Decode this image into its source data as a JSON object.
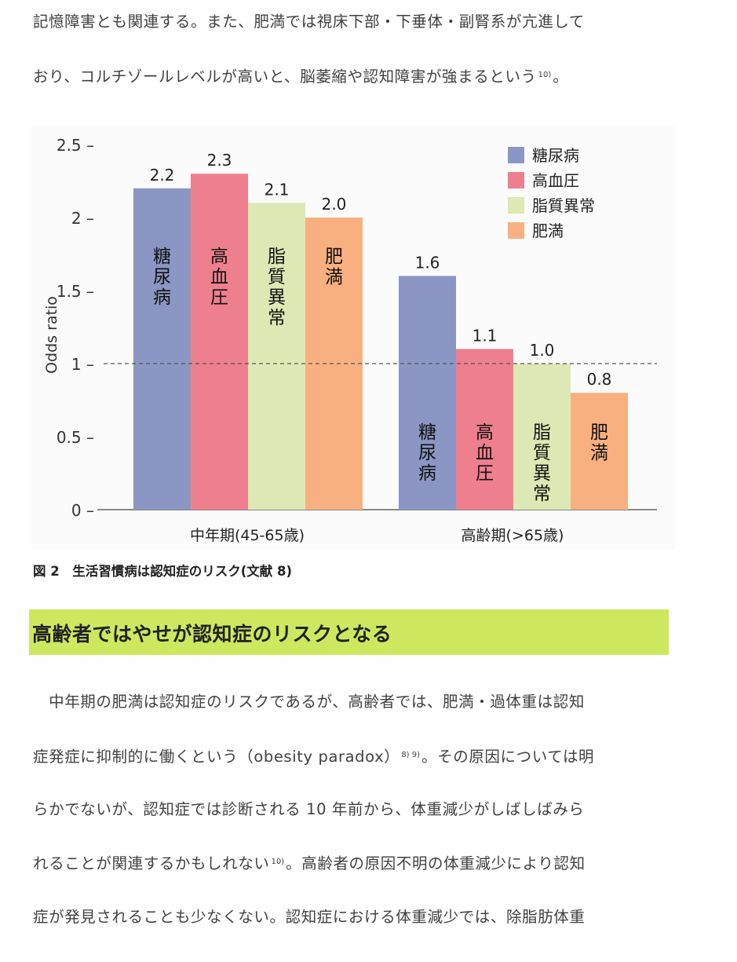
{
  "intro": {
    "line1": "記憶障害とも関連する。また、肥満では視床下部・下垂体・副腎系が亢進して",
    "line2": "おり、コルチゾールレベルが高いと、脳萎縮や認知障害が強まるという",
    "line2_ref": "10)",
    "line2_end": "。"
  },
  "chart_data": {
    "type": "bar",
    "ylabel": "Odds ratio",
    "ylim": [
      0,
      2.5
    ],
    "yticks": [
      "0",
      "0.5",
      "1",
      "1.5",
      "2",
      "2.5"
    ],
    "reference_line": 1,
    "groups": [
      "中年期(45-65歳)",
      "高齢期(>65歳)"
    ],
    "series": [
      {
        "name": "糖尿病",
        "values": [
          2.2,
          1.6
        ],
        "labels": [
          "2.2",
          "1.6"
        ],
        "color": "#8b96c4"
      },
      {
        "name": "高血圧",
        "values": [
          2.3,
          1.1
        ],
        "labels": [
          "2.3",
          "1.1"
        ],
        "color": "#ee7f8e"
      },
      {
        "name": "脂質異常",
        "values": [
          2.1,
          1.0
        ],
        "labels": [
          "2.1",
          "1.0"
        ],
        "color": "#dde8b4"
      },
      {
        "name": "肥満",
        "values": [
          2.0,
          0.8
        ],
        "labels": [
          "2.0",
          "0.8"
        ],
        "color": "#f8b080"
      }
    ],
    "legend_position": "top-right"
  },
  "figure": {
    "caption": "図 2　生活習慣病は認知症のリスク(文献 8)"
  },
  "section": {
    "heading": "高齢者ではやせが認知症のリスクとなる"
  },
  "body": {
    "line1": "　中年期の肥満は認知症のリスクであるが、高齢者では、肥満・過体重は認知",
    "line2a": "症発症に抑制的に働くという（obesity paradox）",
    "line2_ref": "8) 9)",
    "line2b": "。その原因については明",
    "line3": "らかでないが、認知症では診断される 10 年前から、体重減少がしばしばみら",
    "line4a": "れることが関連するかもしれない",
    "line4_ref": "10)",
    "line4b": "。高齢者の原因不明の体重減少により認知",
    "line5": "症が発見されることも少なくない。認知症における体重減少では、除脂肪体重"
  }
}
